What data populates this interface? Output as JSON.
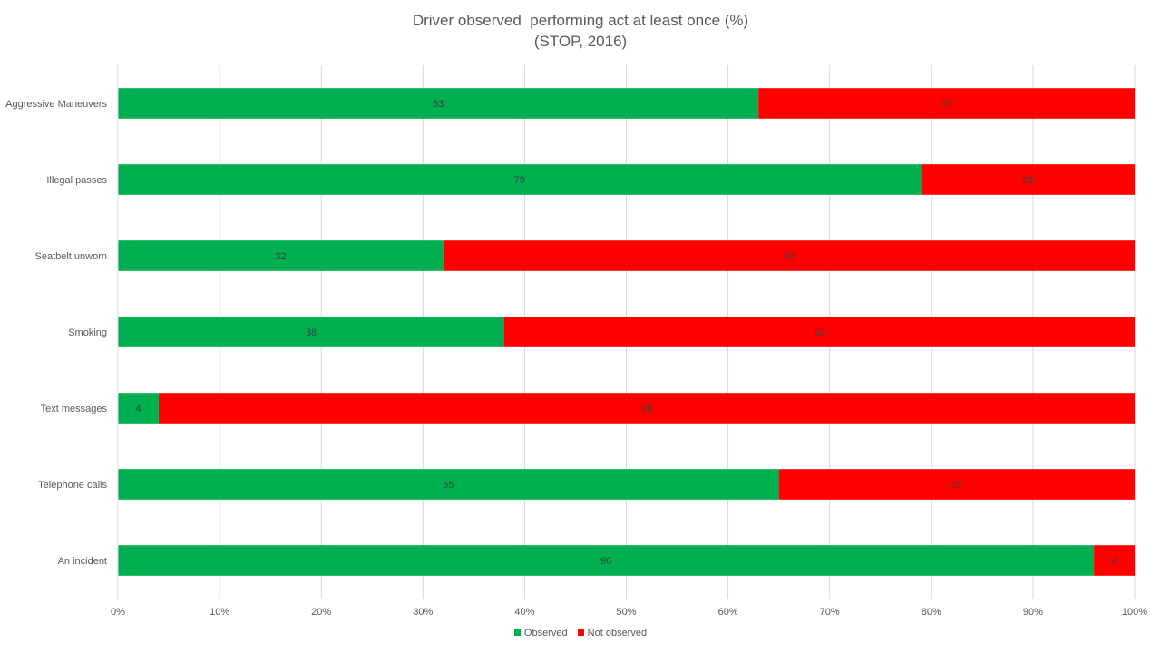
{
  "chart_data": {
    "type": "bar",
    "orientation": "horizontal",
    "stacked": "100%",
    "title": "Driver observed  performing act at least once (%)",
    "subtitle": "(STOP, 2016)",
    "categories": [
      "Aggressive Maneuvers",
      "Illegal passes",
      "Seatbelt unworn",
      "Smoking",
      "Text messages",
      "Telephone calls",
      "An incident"
    ],
    "series": [
      {
        "name": "Observed",
        "color": "#00B050",
        "values": [
          63,
          79,
          32,
          38,
          4,
          65,
          96
        ]
      },
      {
        "name": "Not observed",
        "color": "#FF0000",
        "values": [
          37,
          21,
          68,
          62,
          96,
          35,
          4
        ]
      }
    ],
    "xlim": [
      0,
      100
    ],
    "xticks": [
      "0%",
      "10%",
      "20%",
      "30%",
      "40%",
      "50%",
      "60%",
      "70%",
      "80%",
      "90%",
      "100%"
    ],
    "grid": true,
    "legend_position": "bottom"
  }
}
